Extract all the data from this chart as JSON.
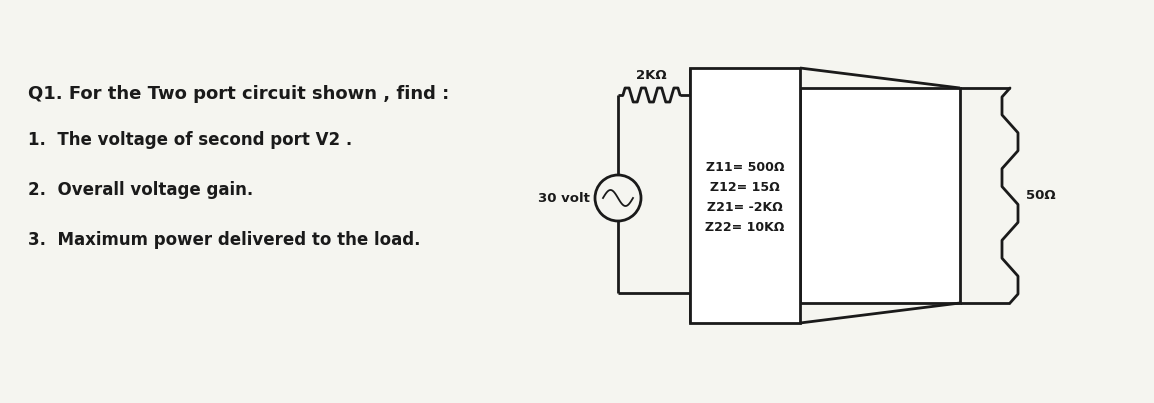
{
  "bg_color": "#f5f5f0",
  "title_text": "Q1. For the Two port circuit shown , find :",
  "items": [
    "1.  The voltage of second port V2 .",
    "2.  Overall voltage gain.",
    "3.  Maximum power delivered to the load."
  ],
  "circuit": {
    "source_label": "30 volt",
    "resistor_series_label": "2KΩ",
    "box_labels": [
      "Z11= 500Ω",
      "Z12= 15Ω",
      "Z21= -2KΩ",
      "Z22= 10KΩ"
    ],
    "load_label": "50Ω"
  },
  "text_color": "#1a1a1a",
  "line_color": "#1a1a1a",
  "title_fontsize": 13,
  "item_fontsize": 12,
  "circuit_fontsize": 9.5
}
